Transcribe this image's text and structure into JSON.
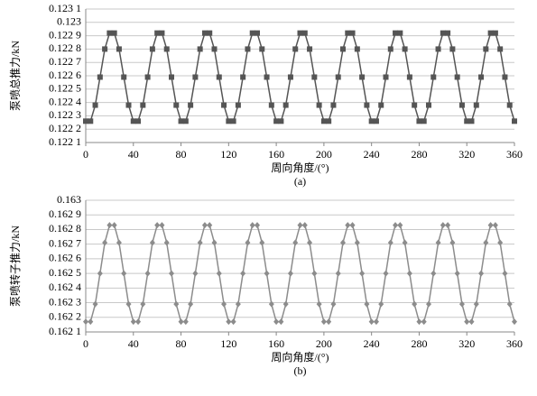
{
  "chart_data": [
    {
      "type": "line",
      "caption": "(a)",
      "y_label": "泵喷总推力/kN",
      "x_label": "周向角度/(°)",
      "color": "#555555",
      "marker": "square",
      "grid": true,
      "xlim": [
        0,
        360
      ],
      "xticks": [
        0,
        40,
        80,
        120,
        160,
        200,
        240,
        280,
        320,
        360
      ],
      "ylim": [
        0.1221,
        0.1231
      ],
      "yticks": [
        {
          "value": 0.1221,
          "label": "0.122 1"
        },
        {
          "value": 0.1222,
          "label": "0.122 2"
        },
        {
          "value": 0.1223,
          "label": "0.122 3"
        },
        {
          "value": 0.1224,
          "label": "0.122 4"
        },
        {
          "value": 0.1225,
          "label": "0.122 5"
        },
        {
          "value": 0.1226,
          "label": "0.122 6"
        },
        {
          "value": 0.1227,
          "label": "0.122 7"
        },
        {
          "value": 0.1228,
          "label": "0.122 8"
        },
        {
          "value": 0.1229,
          "label": "0.122 9"
        },
        {
          "value": 0.123,
          "label": "0.123"
        },
        {
          "value": 0.1231,
          "label": "0.123 1"
        }
      ],
      "x": [
        0,
        4,
        8,
        12,
        16,
        20,
        24,
        28,
        32,
        36,
        40,
        44,
        48,
        52,
        56,
        60,
        64,
        68,
        72,
        76,
        80,
        84,
        88,
        92,
        96,
        100,
        104,
        108,
        112,
        116,
        120,
        124,
        128,
        132,
        136,
        140,
        144,
        148,
        152,
        156,
        160,
        164,
        168,
        172,
        176,
        180,
        184,
        188,
        192,
        196,
        200,
        204,
        208,
        212,
        216,
        220,
        224,
        228,
        232,
        236,
        240,
        244,
        248,
        252,
        256,
        260,
        264,
        268,
        272,
        276,
        280,
        284,
        288,
        292,
        296,
        300,
        304,
        308,
        312,
        316,
        320,
        324,
        328,
        332,
        336,
        340,
        344,
        348,
        352,
        356,
        360
      ],
      "values": [
        0.12226,
        0.12226,
        0.12238,
        0.12259,
        0.1228,
        0.12292,
        0.12292,
        0.1228,
        0.12259,
        0.12238,
        0.12226,
        0.12226,
        0.12238,
        0.12259,
        0.1228,
        0.12292,
        0.12292,
        0.1228,
        0.12259,
        0.12238,
        0.12226,
        0.12226,
        0.12238,
        0.12259,
        0.1228,
        0.12292,
        0.12292,
        0.1228,
        0.12259,
        0.12238,
        0.12226,
        0.12226,
        0.12238,
        0.12259,
        0.1228,
        0.12292,
        0.12292,
        0.1228,
        0.12259,
        0.12238,
        0.12226,
        0.12226,
        0.12238,
        0.12259,
        0.1228,
        0.12292,
        0.12292,
        0.1228,
        0.12259,
        0.12238,
        0.12226,
        0.12226,
        0.12238,
        0.12259,
        0.1228,
        0.12292,
        0.12292,
        0.1228,
        0.12259,
        0.12238,
        0.12226,
        0.12226,
        0.12238,
        0.12259,
        0.1228,
        0.12292,
        0.12292,
        0.1228,
        0.12259,
        0.12238,
        0.12226,
        0.12226,
        0.12238,
        0.12259,
        0.1228,
        0.12292,
        0.12292,
        0.1228,
        0.12259,
        0.12238,
        0.12226,
        0.12226,
        0.12238,
        0.12259,
        0.1228,
        0.12292,
        0.12292,
        0.1228,
        0.12259,
        0.12238,
        0.12226
      ]
    },
    {
      "type": "line",
      "caption": "(b)",
      "y_label": "泵喷转子推力/kN",
      "x_label": "周向角度/(°)",
      "color": "#8c8c8c",
      "marker": "diamond",
      "grid": true,
      "xlim": [
        0,
        360
      ],
      "xticks": [
        0,
        40,
        80,
        120,
        160,
        200,
        240,
        280,
        320,
        360
      ],
      "ylim": [
        0.1621,
        0.163
      ],
      "yticks": [
        {
          "value": 0.1621,
          "label": "0.162 1"
        },
        {
          "value": 0.1622,
          "label": "0.162 2"
        },
        {
          "value": 0.1623,
          "label": "0.162 3"
        },
        {
          "value": 0.1624,
          "label": "0.162 4"
        },
        {
          "value": 0.1625,
          "label": "0.162 5"
        },
        {
          "value": 0.1626,
          "label": "0.162 6"
        },
        {
          "value": 0.1627,
          "label": "0.162 7"
        },
        {
          "value": 0.1628,
          "label": "0.162 8"
        },
        {
          "value": 0.1629,
          "label": "0.162 9"
        },
        {
          "value": 0.163,
          "label": "0.163"
        }
      ],
      "x": [
        0,
        4,
        8,
        12,
        16,
        20,
        24,
        28,
        32,
        36,
        40,
        44,
        48,
        52,
        56,
        60,
        64,
        68,
        72,
        76,
        80,
        84,
        88,
        92,
        96,
        100,
        104,
        108,
        112,
        116,
        120,
        124,
        128,
        132,
        136,
        140,
        144,
        148,
        152,
        156,
        160,
        164,
        168,
        172,
        176,
        180,
        184,
        188,
        192,
        196,
        200,
        204,
        208,
        212,
        216,
        220,
        224,
        228,
        232,
        236,
        240,
        244,
        248,
        252,
        256,
        260,
        264,
        268,
        272,
        276,
        280,
        284,
        288,
        292,
        296,
        300,
        304,
        308,
        312,
        316,
        320,
        324,
        328,
        332,
        336,
        340,
        344,
        348,
        352,
        356,
        360
      ],
      "values": [
        0.16217,
        0.16217,
        0.16229,
        0.1625,
        0.16271,
        0.16283,
        0.16283,
        0.16271,
        0.1625,
        0.16229,
        0.16217,
        0.16217,
        0.16229,
        0.1625,
        0.16271,
        0.16283,
        0.16283,
        0.16271,
        0.1625,
        0.16229,
        0.16217,
        0.16217,
        0.16229,
        0.1625,
        0.16271,
        0.16283,
        0.16283,
        0.16271,
        0.1625,
        0.16229,
        0.16217,
        0.16217,
        0.16229,
        0.1625,
        0.16271,
        0.16283,
        0.16283,
        0.16271,
        0.1625,
        0.16229,
        0.16217,
        0.16217,
        0.16229,
        0.1625,
        0.16271,
        0.16283,
        0.16283,
        0.16271,
        0.1625,
        0.16229,
        0.16217,
        0.16217,
        0.16229,
        0.1625,
        0.16271,
        0.16283,
        0.16283,
        0.16271,
        0.1625,
        0.16229,
        0.16217,
        0.16217,
        0.16229,
        0.1625,
        0.16271,
        0.16283,
        0.16283,
        0.16271,
        0.1625,
        0.16229,
        0.16217,
        0.16217,
        0.16229,
        0.1625,
        0.16271,
        0.16283,
        0.16283,
        0.16271,
        0.1625,
        0.16229,
        0.16217,
        0.16217,
        0.16229,
        0.1625,
        0.16271,
        0.16283,
        0.16283,
        0.16271,
        0.1625,
        0.16229,
        0.16217
      ]
    }
  ]
}
